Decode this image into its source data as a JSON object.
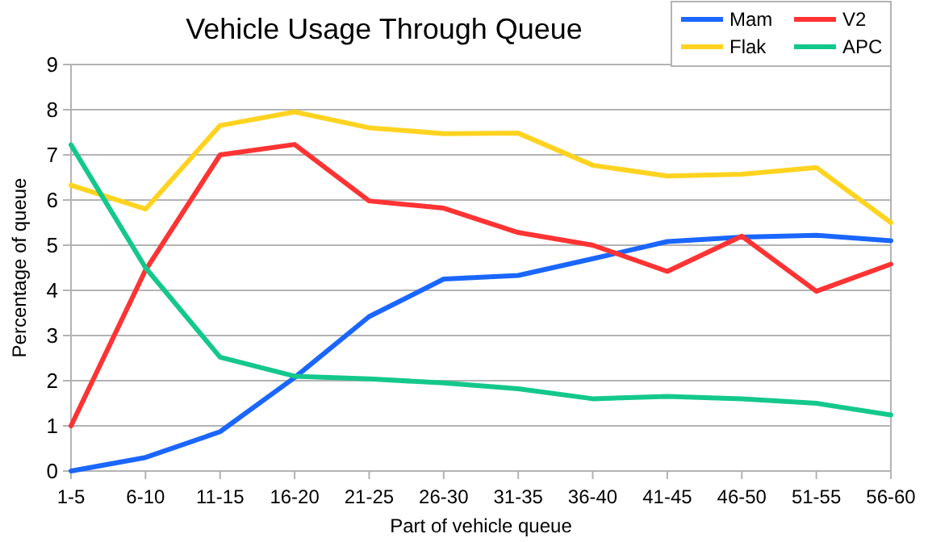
{
  "chart_data": {
    "type": "line",
    "title": "Vehicle Usage Through Queue",
    "xlabel": "Part of vehicle queue",
    "ylabel": "Percentage of queue",
    "categories": [
      "1-5",
      "6-10",
      "11-15",
      "16-20",
      "21-25",
      "26-30",
      "31-35",
      "36-40",
      "41-45",
      "46-50",
      "51-55",
      "56-60"
    ],
    "series": [
      {
        "name": "Mam",
        "color": "#1a66ff",
        "values": [
          0,
          0.3,
          0.87,
          2.07,
          3.42,
          4.25,
          4.33,
          4.7,
          5.08,
          5.18,
          5.22,
          5.1
        ]
      },
      {
        "name": "V2",
        "color": "#ff3333",
        "values": [
          1.0,
          4.45,
          7.0,
          7.23,
          5.98,
          5.82,
          5.28,
          5.0,
          4.42,
          5.2,
          3.98,
          4.58
        ]
      },
      {
        "name": "Flak",
        "color": "#ffd320",
        "values": [
          6.33,
          5.8,
          7.65,
          7.95,
          7.6,
          7.47,
          7.48,
          6.77,
          6.53,
          6.57,
          6.72,
          5.5
        ]
      },
      {
        "name": "APC",
        "color": "#14c88c",
        "values": [
          7.22,
          4.5,
          2.52,
          2.1,
          2.04,
          1.95,
          1.82,
          1.6,
          1.65,
          1.6,
          1.5,
          1.24
        ]
      }
    ],
    "ylim": [
      0,
      9
    ],
    "yticks": [
      0,
      1,
      2,
      3,
      4,
      5,
      6,
      7,
      8,
      9
    ],
    "grid": "y",
    "legend": "top right",
    "line_style": "solid",
    "marker": "none"
  }
}
